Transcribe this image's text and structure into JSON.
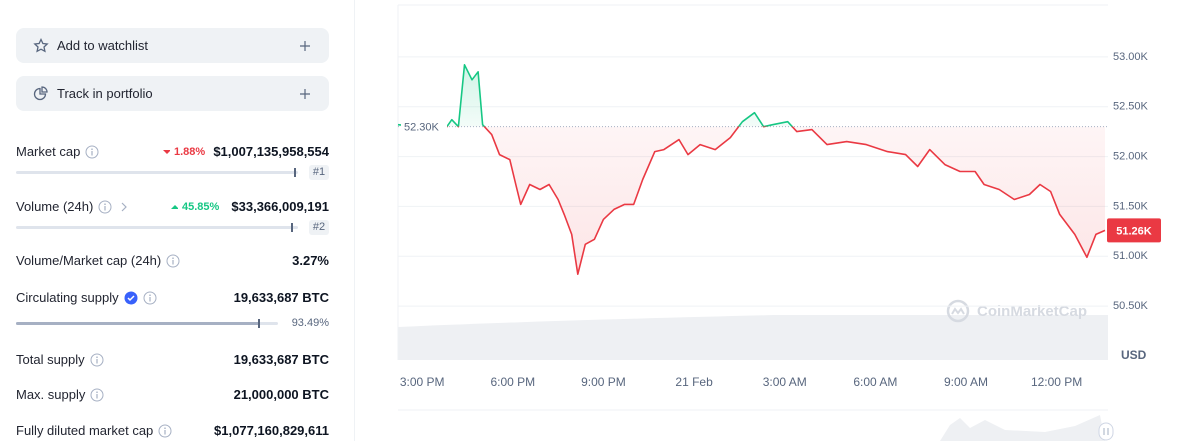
{
  "sidebar": {
    "buttons": [
      "Add to watchlist",
      "Track in portfolio"
    ],
    "stats": [
      {
        "label": "Market cap",
        "change": "1.88%",
        "change_direction": "down",
        "value": "$1,007,135,958,554",
        "rank": "#1"
      },
      {
        "label": "Volume (24h)",
        "change": "45.85%",
        "change_direction": "up",
        "value": "$33,366,009,191",
        "rank": "#2"
      },
      {
        "label": "Volume/Market cap (24h)",
        "value": "3.27%"
      },
      {
        "label": "Circulating supply",
        "value": "19,633,687 BTC",
        "percent": "93.49%"
      },
      {
        "label": "Total supply",
        "value": "19,633,687 BTC"
      },
      {
        "label": "Max. supply",
        "value": "21,000,000 BTC"
      },
      {
        "label": "Fully diluted market cap",
        "value": "$1,077,160,829,611"
      }
    ]
  },
  "chart_data": {
    "type": "line",
    "x": [
      14.2,
      15.75,
      15.98,
      16.2,
      16.4,
      16.65,
      16.85,
      17.0,
      17.3,
      17.56,
      17.9,
      18.1,
      18.26,
      18.56,
      18.9,
      19.2,
      19.5,
      19.7,
      19.95,
      20.15,
      20.4,
      20.7,
      21.0,
      21.35,
      21.7,
      22.0,
      22.3,
      22.7,
      23.0,
      23.5,
      23.8,
      24.2,
      24.7,
      25.2,
      25.6,
      26.0,
      26.3,
      26.6,
      27.1,
      27.4,
      27.9,
      28.4,
      29.05,
      29.7,
      30.4,
      31.0,
      31.4,
      31.8,
      32.3,
      32.8,
      33.3,
      33.6,
      34.1,
      34.6,
      35.1,
      35.45,
      35.8,
      36.1,
      36.6,
      37.0,
      37.3,
      37.6
    ],
    "values": [
      52320,
      52270,
      52370,
      52300,
      52920,
      52770,
      52850,
      52320,
      52220,
      52020,
      51970,
      51720,
      51520,
      51720,
      51670,
      51720,
      51570,
      51420,
      51220,
      50820,
      51120,
      51170,
      51370,
      51470,
      51520,
      51520,
      51770,
      52050,
      52070,
      52170,
      52020,
      52120,
      52070,
      52190,
      52350,
      52440,
      52300,
      52320,
      52350,
      52250,
      52270,
      52120,
      52150,
      52120,
      52050,
      52020,
      51900,
      52070,
      51920,
      51850,
      51850,
      51720,
      51670,
      51570,
      51620,
      51720,
      51650,
      51420,
      51220,
      50990,
      51220,
      51260
    ],
    "xlim": [
      14.2,
      37.7
    ],
    "xticks": [
      {
        "value": 15,
        "label": "3:00 PM"
      },
      {
        "value": 18,
        "label": "6:00 PM"
      },
      {
        "value": 21,
        "label": "9:00 PM"
      },
      {
        "value": 24,
        "label": "21 Feb"
      },
      {
        "value": 27,
        "label": "3:00 AM"
      },
      {
        "value": 30,
        "label": "6:00 AM"
      },
      {
        "value": 33,
        "label": "9:00 AM"
      },
      {
        "value": 36,
        "label": "12:00 PM"
      }
    ],
    "ylim": [
      49960,
      53520
    ],
    "yticks": [
      {
        "value": 50500,
        "label": "50.50K"
      },
      {
        "value": 51000,
        "label": "51.00K"
      },
      {
        "value": 51500,
        "label": "51.50K"
      },
      {
        "value": 52000,
        "label": "52.00K"
      },
      {
        "value": 52500,
        "label": "52.50K"
      },
      {
        "value": 53000,
        "label": "53.00K"
      }
    ],
    "y_unit": "USD",
    "baseline": {
      "value": 52300,
      "label": "52.30K"
    },
    "last_price": {
      "value": 51260,
      "label": "51.26K"
    },
    "color_above": "#16c784",
    "color_below": "#ea3943",
    "grid": true,
    "watermark": "CoinMarketCap"
  }
}
